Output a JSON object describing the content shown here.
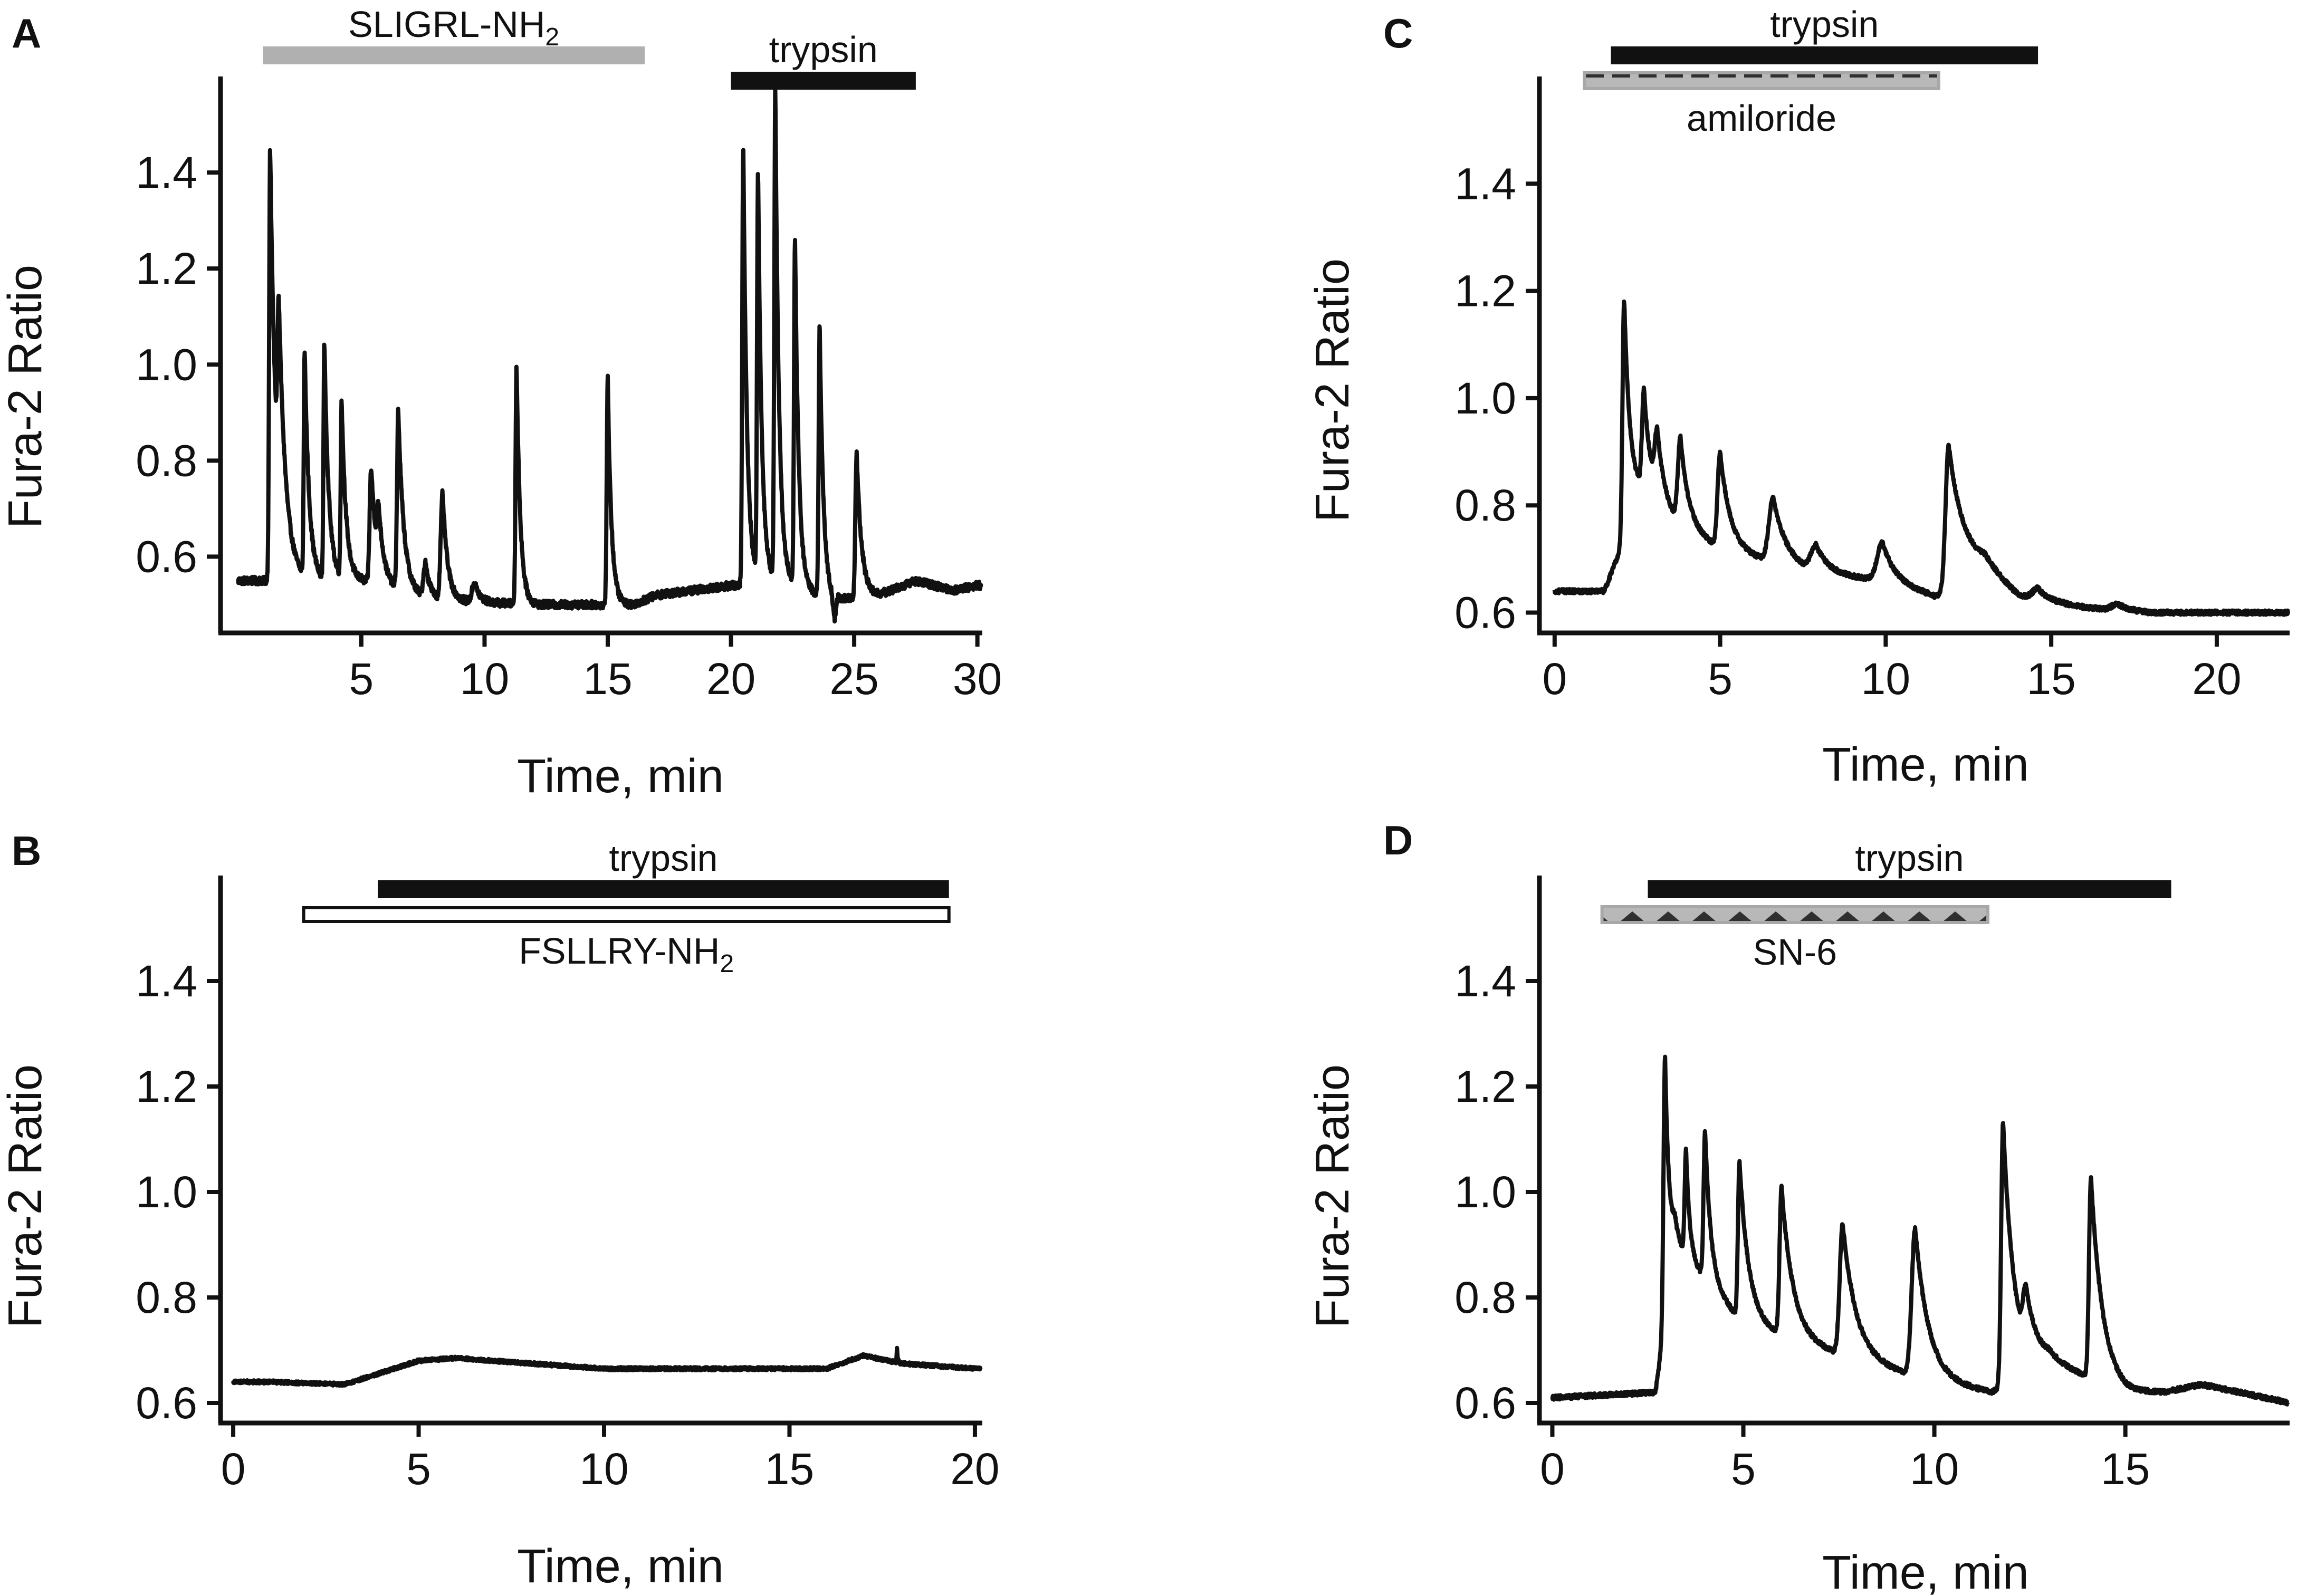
{
  "figure": {
    "description_labels": [
      "A",
      "B",
      "C",
      "D"
    ]
  },
  "chart_data": [
    {
      "panel": "A",
      "type": "line",
      "xlabel": "Time, min",
      "ylabel": "Fura-2 Ratio",
      "xlim": [
        -0.5,
        30.2
      ],
      "ylim": [
        0.45,
        1.6
      ],
      "xticks": [
        5,
        10,
        15,
        20,
        25,
        30
      ],
      "xtick_labels": [
        "5",
        "10",
        "15",
        "20",
        "25",
        "30"
      ],
      "yticks": [
        0.6,
        0.8,
        1.0,
        1.2,
        1.4
      ],
      "ytick_labels": [
        "0.6",
        "0.8",
        "1.0",
        "1.2",
        "1.4"
      ],
      "treatments": [
        {
          "label": "SLIGRL-NH",
          "subscript": "2",
          "start": 1.0,
          "end": 16.5,
          "style": "gray",
          "label_pos": "above"
        },
        {
          "label": "trypsin",
          "subscript": "",
          "start": 20.0,
          "end": 27.5,
          "style": "black",
          "label_pos": "above"
        }
      ],
      "baseline": [
        [
          0,
          0.55
        ],
        [
          5,
          0.55
        ],
        [
          8,
          0.51
        ],
        [
          12,
          0.5
        ],
        [
          16,
          0.5
        ],
        [
          17,
          0.52
        ],
        [
          20,
          0.54
        ],
        [
          22,
          0.55
        ],
        [
          24,
          0.51
        ],
        [
          26,
          0.52
        ],
        [
          27.5,
          0.55
        ],
        [
          29,
          0.53
        ],
        [
          30,
          0.54
        ]
      ],
      "noise": 0.008,
      "peaks": [
        {
          "t": 1.3,
          "amp": 0.9,
          "w": 0.08,
          "decay": 0.25
        },
        {
          "t": 1.65,
          "amp": 0.37,
          "w": 0.1,
          "decay": 0.3
        },
        {
          "t": 2.7,
          "amp": 0.47,
          "w": 0.07,
          "decay": 0.18
        },
        {
          "t": 3.5,
          "amp": 0.49,
          "w": 0.07,
          "decay": 0.18
        },
        {
          "t": 4.2,
          "amp": 0.37,
          "w": 0.07,
          "decay": 0.18
        },
        {
          "t": 5.4,
          "amp": 0.24,
          "w": 0.12,
          "decay": 0.25
        },
        {
          "t": 5.7,
          "amp": 0.1,
          "w": 0.1,
          "decay": 0.2
        },
        {
          "t": 6.5,
          "amp": 0.37,
          "w": 0.1,
          "decay": 0.22
        },
        {
          "t": 7.6,
          "amp": 0.07,
          "w": 0.15,
          "decay": 0.2
        },
        {
          "t": 8.3,
          "amp": 0.22,
          "w": 0.15,
          "decay": 0.2
        },
        {
          "t": 9.6,
          "amp": 0.04,
          "w": 0.2,
          "decay": 0.2
        },
        {
          "t": 11.3,
          "amp": 0.5,
          "w": 0.08,
          "decay": 0.15
        },
        {
          "t": 15.0,
          "amp": 0.47,
          "w": 0.08,
          "decay": 0.15
        },
        {
          "t": 20.5,
          "amp": 0.92,
          "w": 0.08,
          "decay": 0.15
        },
        {
          "t": 21.1,
          "amp": 0.85,
          "w": 0.08,
          "decay": 0.15
        },
        {
          "t": 21.8,
          "amp": 1.02,
          "w": 0.08,
          "decay": 0.15
        },
        {
          "t": 22.6,
          "amp": 0.72,
          "w": 0.08,
          "decay": 0.15
        },
        {
          "t": 23.6,
          "amp": 0.57,
          "w": 0.08,
          "decay": 0.15
        },
        {
          "t": 25.1,
          "amp": 0.3,
          "w": 0.1,
          "decay": 0.2
        }
      ],
      "dips": [
        {
          "t": 24.2,
          "amp": -0.05,
          "w": 0.08
        }
      ]
    },
    {
      "panel": "B",
      "type": "line",
      "xlabel": "Time, min",
      "ylabel": "Fura-2 Ratio",
      "xlim": [
        -0.2,
        20.2
      ],
      "ylim": [
        0.57,
        1.6
      ],
      "xticks": [
        0,
        5,
        10,
        15,
        20
      ],
      "xtick_labels": [
        "0",
        "5",
        "10",
        "15",
        "20"
      ],
      "yticks": [
        0.6,
        0.8,
        1.0,
        1.2,
        1.4
      ],
      "ytick_labels": [
        "0.6",
        "0.8",
        "1.0",
        "1.2",
        "1.4"
      ],
      "treatments": [
        {
          "label": "trypsin",
          "subscript": "",
          "start": 3.9,
          "end": 19.3,
          "style": "black",
          "label_pos": "above"
        },
        {
          "label": "FSLLRY-NH",
          "subscript": "2",
          "start": 1.9,
          "end": 19.3,
          "style": "open",
          "label_pos": "below"
        }
      ],
      "baseline": [
        [
          0,
          0.64
        ],
        [
          1,
          0.64
        ],
        [
          3,
          0.635
        ],
        [
          5,
          0.68
        ],
        [
          6,
          0.685
        ],
        [
          8,
          0.675
        ],
        [
          10,
          0.665
        ],
        [
          14,
          0.665
        ],
        [
          16,
          0.665
        ],
        [
          17,
          0.69
        ],
        [
          18,
          0.675
        ],
        [
          20,
          0.665
        ]
      ],
      "noise": 0.003,
      "peaks": [
        {
          "t": 17.9,
          "amp": 0.025,
          "w": 0.02,
          "decay": 0.02
        }
      ],
      "dips": []
    },
    {
      "panel": "C",
      "type": "line",
      "xlabel": "Time, min",
      "ylabel": "Fura-2 Ratio",
      "xlim": [
        -0.3,
        22.2
      ],
      "ylim": [
        0.57,
        1.6
      ],
      "xticks": [
        0,
        5,
        10,
        15,
        20
      ],
      "xtick_labels": [
        "0",
        "5",
        "10",
        "15",
        "20"
      ],
      "yticks": [
        0.6,
        0.8,
        1.0,
        1.2,
        1.4
      ],
      "ytick_labels": [
        "0.6",
        "0.8",
        "1.0",
        "1.2",
        "1.4"
      ],
      "treatments": [
        {
          "label": "trypsin",
          "subscript": "",
          "start": 1.7,
          "end": 14.6,
          "style": "black",
          "label_pos": "above"
        },
        {
          "label": "amiloride",
          "subscript": "",
          "start": 0.9,
          "end": 11.6,
          "style": "dashed",
          "label_pos": "below"
        }
      ],
      "baseline": [
        [
          0,
          0.64
        ],
        [
          1.5,
          0.64
        ],
        [
          2.5,
          0.8
        ],
        [
          5,
          0.72
        ],
        [
          8,
          0.67
        ],
        [
          10,
          0.66
        ],
        [
          11.5,
          0.63
        ],
        [
          13,
          0.68
        ],
        [
          14,
          0.63
        ],
        [
          16,
          0.61
        ],
        [
          18,
          0.6
        ],
        [
          22,
          0.6
        ]
      ],
      "noise": 0.004,
      "peaks": [
        {
          "t": 2.1,
          "amp": 0.45,
          "w": 0.1,
          "decay": 0.2
        },
        {
          "t": 2.7,
          "amp": 0.2,
          "w": 0.12,
          "decay": 0.25
        },
        {
          "t": 3.1,
          "amp": 0.12,
          "w": 0.15,
          "decay": 0.25
        },
        {
          "t": 3.8,
          "amp": 0.16,
          "w": 0.15,
          "decay": 0.25
        },
        {
          "t": 5.0,
          "amp": 0.18,
          "w": 0.15,
          "decay": 0.3
        },
        {
          "t": 6.6,
          "amp": 0.12,
          "w": 0.25,
          "decay": 0.4
        },
        {
          "t": 7.9,
          "amp": 0.05,
          "w": 0.3,
          "decay": 0.4
        },
        {
          "t": 9.9,
          "amp": 0.07,
          "w": 0.3,
          "decay": 0.35
        },
        {
          "t": 11.9,
          "amp": 0.27,
          "w": 0.18,
          "decay": 0.5
        },
        {
          "t": 14.6,
          "amp": 0.02,
          "w": 0.3,
          "decay": 0.3
        },
        {
          "t": 17.0,
          "amp": 0.012,
          "w": 0.3,
          "decay": 0.3
        }
      ],
      "dips": []
    },
    {
      "panel": "D",
      "type": "line",
      "xlabel": "Time, min",
      "ylabel": "Fura-2 Ratio",
      "xlim": [
        -0.2,
        19.3
      ],
      "ylim": [
        0.57,
        1.6
      ],
      "xticks": [
        0,
        5,
        10,
        15
      ],
      "xtick_labels": [
        "0",
        "5",
        "10",
        "15"
      ],
      "yticks": [
        0.6,
        0.8,
        1.0,
        1.2,
        1.4
      ],
      "ytick_labels": [
        "0.6",
        "0.8",
        "1.0",
        "1.2",
        "1.4"
      ],
      "treatments": [
        {
          "label": "trypsin",
          "subscript": "",
          "start": 2.5,
          "end": 16.2,
          "style": "black",
          "label_pos": "above"
        },
        {
          "label": "SN-6",
          "subscript": "",
          "start": 1.3,
          "end": 11.4,
          "style": "triangles",
          "label_pos": "below"
        }
      ],
      "baseline": [
        [
          0,
          0.61
        ],
        [
          2.7,
          0.62
        ],
        [
          3.2,
          0.9
        ],
        [
          5,
          0.75
        ],
        [
          8,
          0.68
        ],
        [
          10,
          0.64
        ],
        [
          11.5,
          0.62
        ],
        [
          13,
          0.68
        ],
        [
          15,
          0.62
        ],
        [
          16,
          0.62
        ],
        [
          17,
          0.635
        ],
        [
          18,
          0.62
        ],
        [
          19.3,
          0.6
        ]
      ],
      "noise": 0.004,
      "peaks": [
        {
          "t": 2.95,
          "amp": 0.5,
          "w": 0.08,
          "decay": 0.12
        },
        {
          "t": 3.5,
          "amp": 0.2,
          "w": 0.07,
          "decay": 0.1
        },
        {
          "t": 4.0,
          "amp": 0.28,
          "w": 0.08,
          "decay": 0.15
        },
        {
          "t": 4.9,
          "amp": 0.3,
          "w": 0.08,
          "decay": 0.25
        },
        {
          "t": 6.0,
          "amp": 0.28,
          "w": 0.1,
          "decay": 0.3
        },
        {
          "t": 7.6,
          "amp": 0.25,
          "w": 0.15,
          "decay": 0.35
        },
        {
          "t": 9.5,
          "amp": 0.28,
          "w": 0.18,
          "decay": 0.35
        },
        {
          "t": 11.8,
          "amp": 0.5,
          "w": 0.1,
          "decay": 0.3
        },
        {
          "t": 12.4,
          "amp": 0.1,
          "w": 0.15,
          "decay": 0.3
        },
        {
          "t": 14.1,
          "amp": 0.38,
          "w": 0.1,
          "decay": 0.3
        }
      ],
      "dips": []
    }
  ]
}
